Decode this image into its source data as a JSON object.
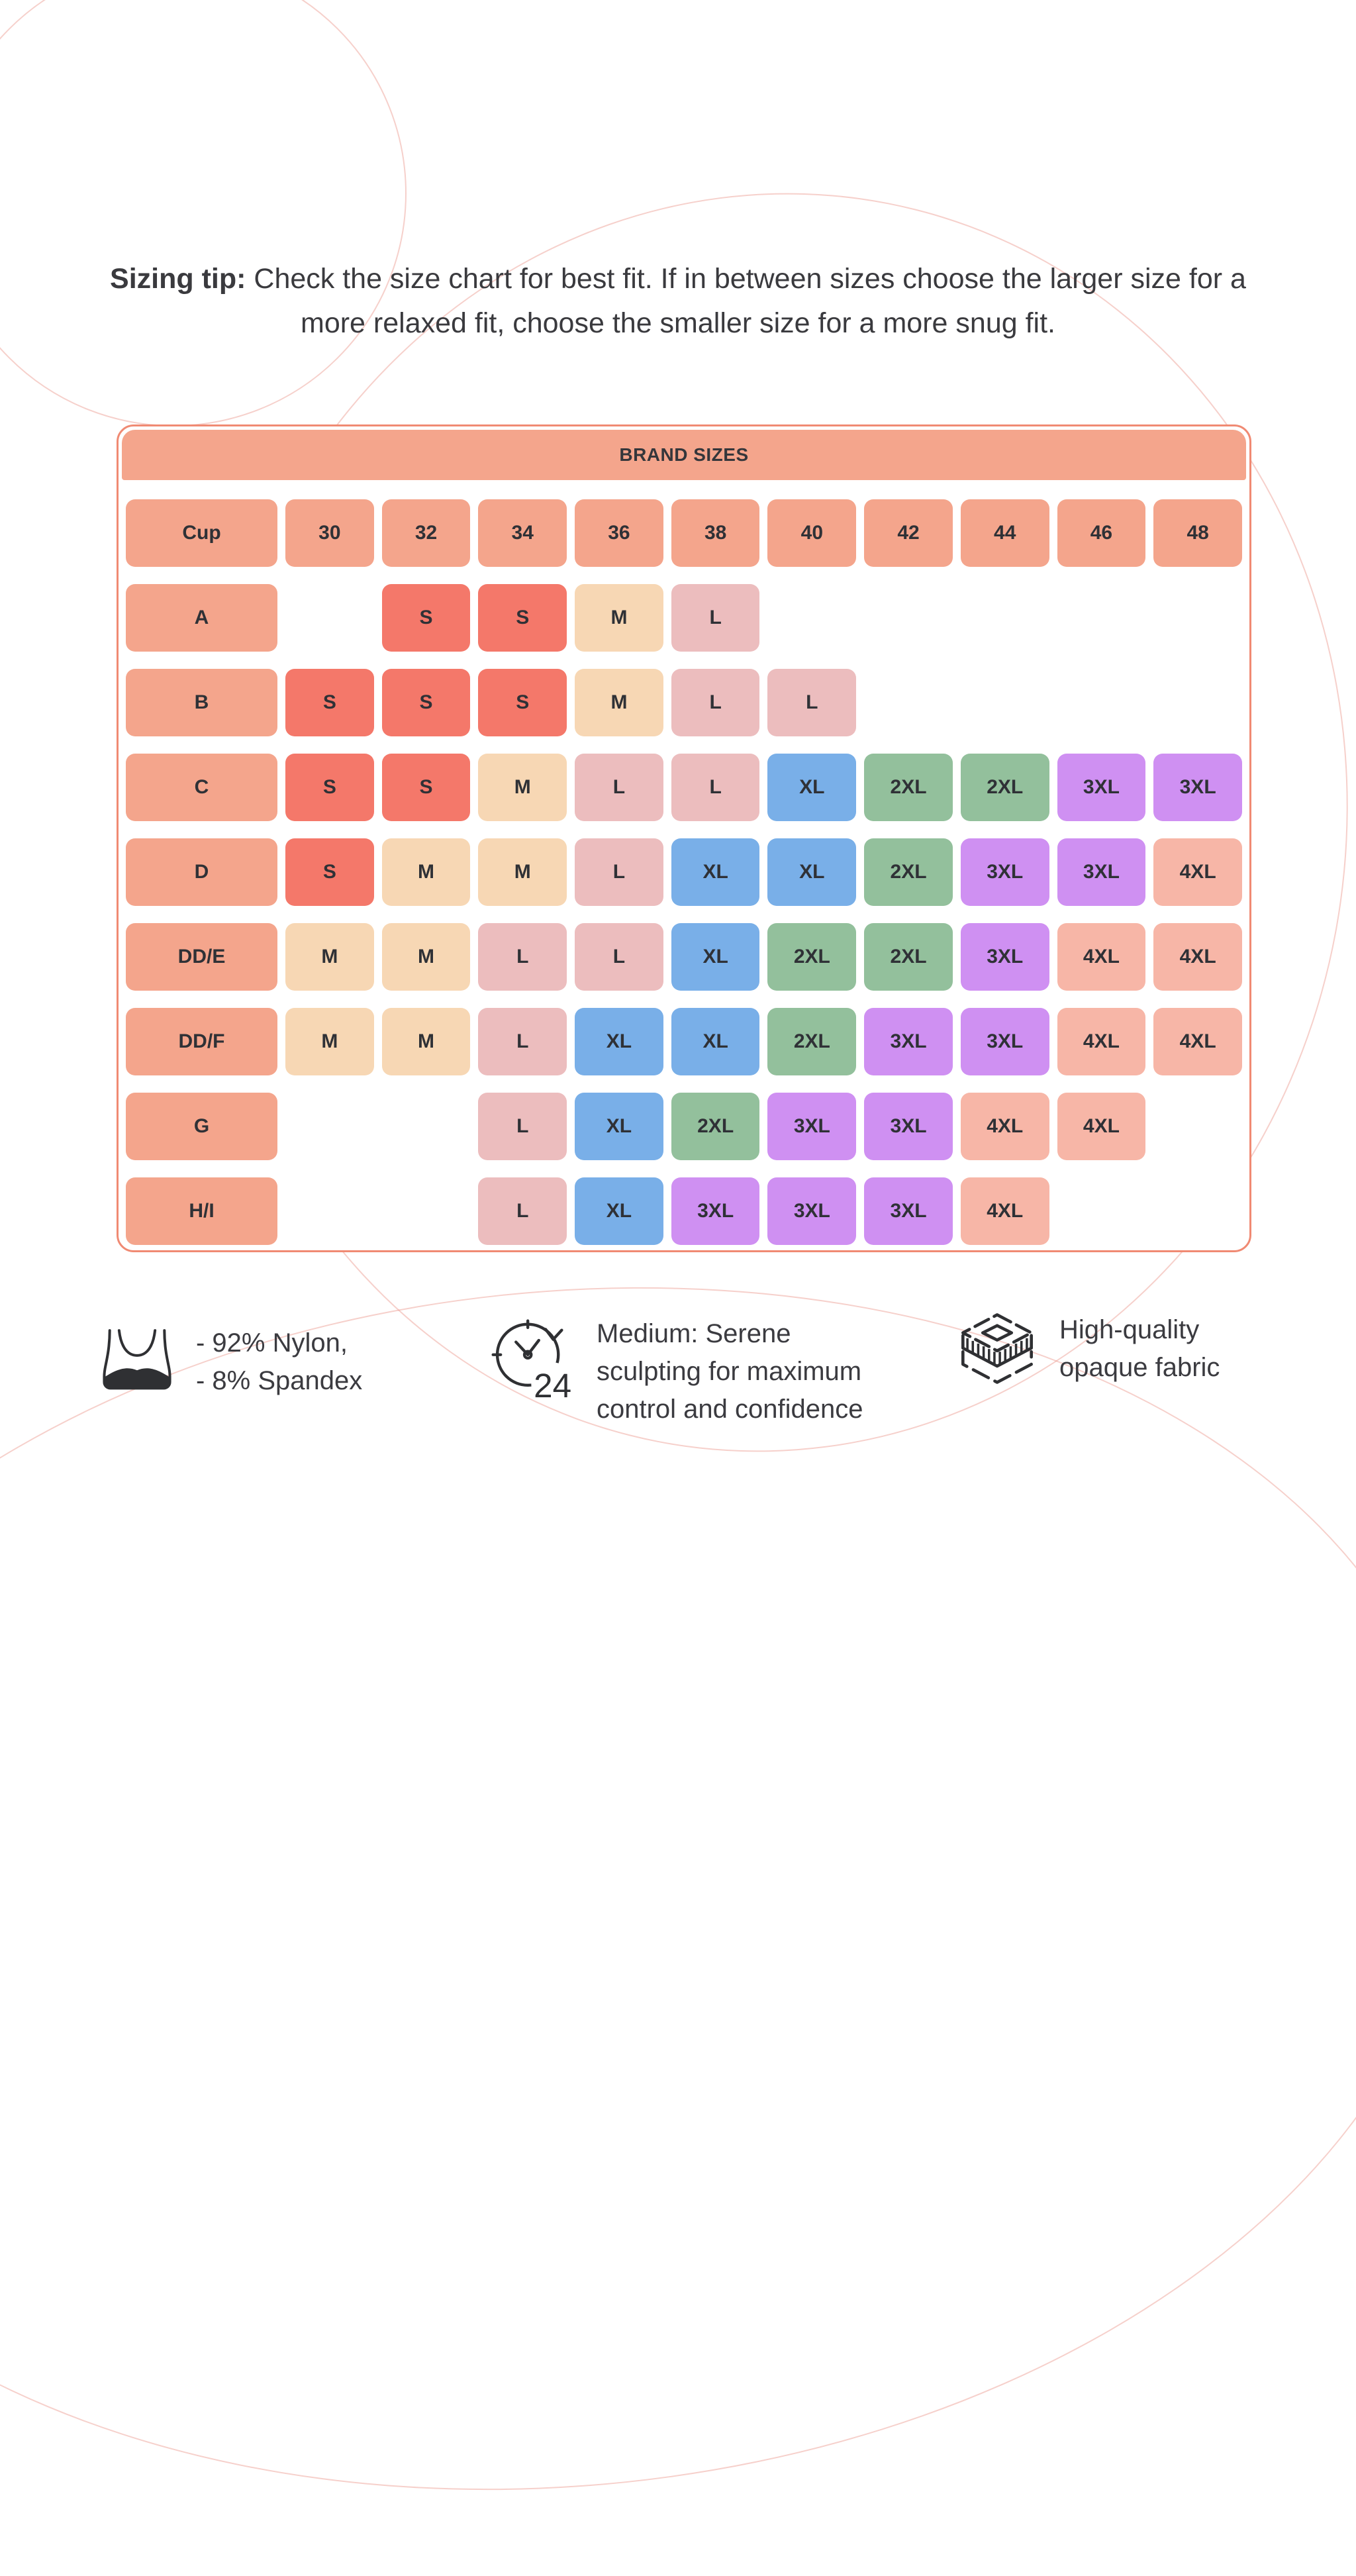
{
  "tip": {
    "bold": "Sizing tip:",
    "rest": " Check the size chart for best fit. If in between sizes choose the larger size for a more relaxed fit, choose the smaller size for a more snug fit."
  },
  "chart_data": {
    "type": "table",
    "title": "BRAND SIZES",
    "columns": [
      "Cup",
      "30",
      "32",
      "34",
      "36",
      "38",
      "40",
      "42",
      "44",
      "46",
      "48"
    ],
    "rows": [
      {
        "cup": "A",
        "sizes": [
          "",
          "S",
          "S",
          "M",
          "L",
          "",
          "",
          "",
          "",
          ""
        ]
      },
      {
        "cup": "B",
        "sizes": [
          "S",
          "S",
          "S",
          "M",
          "L",
          "L",
          "",
          "",
          "",
          ""
        ]
      },
      {
        "cup": "C",
        "sizes": [
          "S",
          "S",
          "M",
          "L",
          "L",
          "XL",
          "2XL",
          "2XL",
          "3XL",
          "3XL"
        ]
      },
      {
        "cup": "D",
        "sizes": [
          "S",
          "M",
          "M",
          "L",
          "XL",
          "XL",
          "2XL",
          "3XL",
          "3XL",
          "4XL"
        ]
      },
      {
        "cup": "DD/E",
        "sizes": [
          "M",
          "M",
          "L",
          "L",
          "XL",
          "2XL",
          "2XL",
          "3XL",
          "4XL",
          "4XL"
        ]
      },
      {
        "cup": "DD/F",
        "sizes": [
          "M",
          "M",
          "L",
          "XL",
          "XL",
          "2XL",
          "3XL",
          "3XL",
          "4XL",
          "4XL"
        ]
      },
      {
        "cup": "G",
        "sizes": [
          "",
          "",
          "L",
          "XL",
          "2XL",
          "3XL",
          "3XL",
          "4XL",
          "4XL",
          ""
        ]
      },
      {
        "cup": "H/I",
        "sizes": [
          "",
          "",
          "L",
          "XL",
          "3XL",
          "3XL",
          "3XL",
          "4XL",
          "",
          ""
        ]
      }
    ],
    "size_colors": {
      "label": "#F4A58C",
      "S": "#F4786A",
      "M": "#F7D7B4",
      "L": "#ECBDBE",
      "XL": "#79AFE8",
      "2XL": "#93C09C",
      "3XL": "#CF90F2",
      "4XL": "#F7B6A7"
    },
    "border_color": "#F08A73"
  },
  "features": [
    {
      "icon": "bra-icon",
      "lines": [
        "- 92% Nylon,",
        "- 8% Spandex"
      ]
    },
    {
      "icon": "clock-24-icon",
      "lines": [
        "Medium: Serene",
        "sculpting for maximum",
        "control and confidence"
      ]
    },
    {
      "icon": "fabric-stack-icon",
      "lines": [
        "High-quality",
        "opaque fabric"
      ]
    }
  ]
}
